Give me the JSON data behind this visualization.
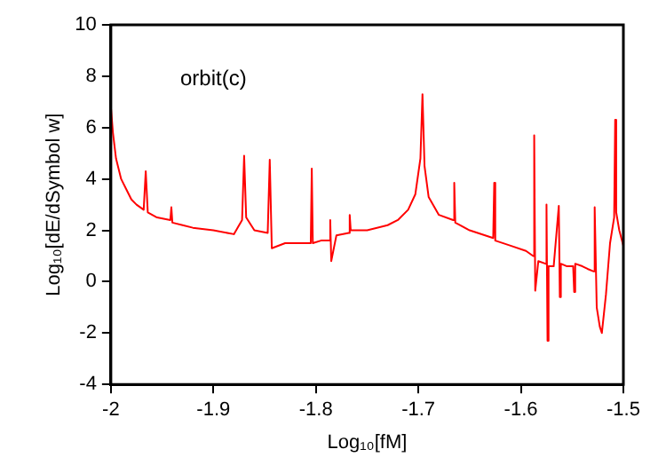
{
  "chart_data": {
    "type": "line",
    "xlabel": "Log₁₀[fM]",
    "ylabel": "Log₁₀[dE/dSymbol w]",
    "annotations": [
      "orbit(c)"
    ],
    "xlim": [
      -2,
      -1.5
    ],
    "xticks": [
      -2,
      -1.9,
      -1.8,
      -1.7,
      -1.6,
      -1.5
    ],
    "ylim": [
      -4,
      10
    ],
    "yticks": [
      -4,
      -2,
      0,
      2,
      4,
      6,
      8,
      10
    ],
    "legend": false,
    "grid": false,
    "marker": "none",
    "line_style": "solid",
    "series": [
      {
        "color": "#ff0000",
        "x": [
          -2,
          -1.998,
          -1.995,
          -1.99,
          -1.985,
          -1.98,
          -1.975,
          -1.968,
          -1.966,
          -1.964,
          -1.955,
          -1.942,
          -1.941,
          -1.94,
          -1.93,
          -1.92,
          -1.9,
          -1.88,
          -1.872,
          -1.87,
          -1.868,
          -1.86,
          -1.847,
          -1.845,
          -1.843,
          -1.83,
          -1.815,
          -1.805,
          -1.804,
          -1.803,
          -1.795,
          -1.787,
          -1.786,
          -1.785,
          -1.78,
          -1.768,
          -1.767,
          -1.766,
          -1.75,
          -1.73,
          -1.72,
          -1.71,
          -1.703,
          -1.698,
          -1.696,
          -1.694,
          -1.69,
          -1.68,
          -1.666,
          -1.665,
          -1.664,
          -1.65,
          -1.627,
          -1.626,
          -1.625,
          -1.61,
          -1.595,
          -1.588,
          -1.587,
          -1.586,
          -1.583,
          -1.576,
          -1.575,
          -1.574,
          -1.573,
          -1.568,
          -1.563,
          -1.562,
          -1.561,
          -1.555,
          -1.549,
          -1.548,
          -1.547,
          -1.54,
          -1.535,
          -1.529,
          -1.528,
          -1.526,
          -1.523,
          -1.521,
          -1.517,
          -1.513,
          -1.509,
          -1.508,
          -1.507,
          -1.504,
          -1.5
        ],
        "values": [
          6.8,
          5.8,
          4.8,
          4.0,
          3.6,
          3.2,
          3.0,
          2.8,
          4.3,
          2.7,
          2.5,
          2.4,
          2.9,
          2.3,
          2.2,
          2.1,
          2.0,
          1.85,
          2.4,
          4.9,
          2.5,
          2.0,
          1.9,
          4.75,
          1.3,
          1.5,
          1.5,
          1.5,
          4.4,
          1.5,
          1.6,
          1.6,
          2.4,
          0.8,
          1.8,
          1.9,
          2.6,
          2.0,
          2.0,
          2.2,
          2.4,
          2.8,
          3.4,
          4.8,
          7.3,
          4.5,
          3.3,
          2.6,
          2.4,
          3.85,
          2.3,
          2.0,
          1.7,
          3.85,
          1.6,
          1.4,
          1.2,
          1.0,
          5.7,
          -0.35,
          0.8,
          0.7,
          3.0,
          -2.3,
          0.6,
          0.6,
          2.95,
          -0.6,
          0.7,
          0.6,
          0.6,
          -0.4,
          0.7,
          0.6,
          0.5,
          0.4,
          2.9,
          -1.0,
          -1.75,
          -2.0,
          -0.5,
          1.5,
          2.5,
          6.3,
          2.7,
          2.0,
          1.4
        ]
      }
    ]
  }
}
